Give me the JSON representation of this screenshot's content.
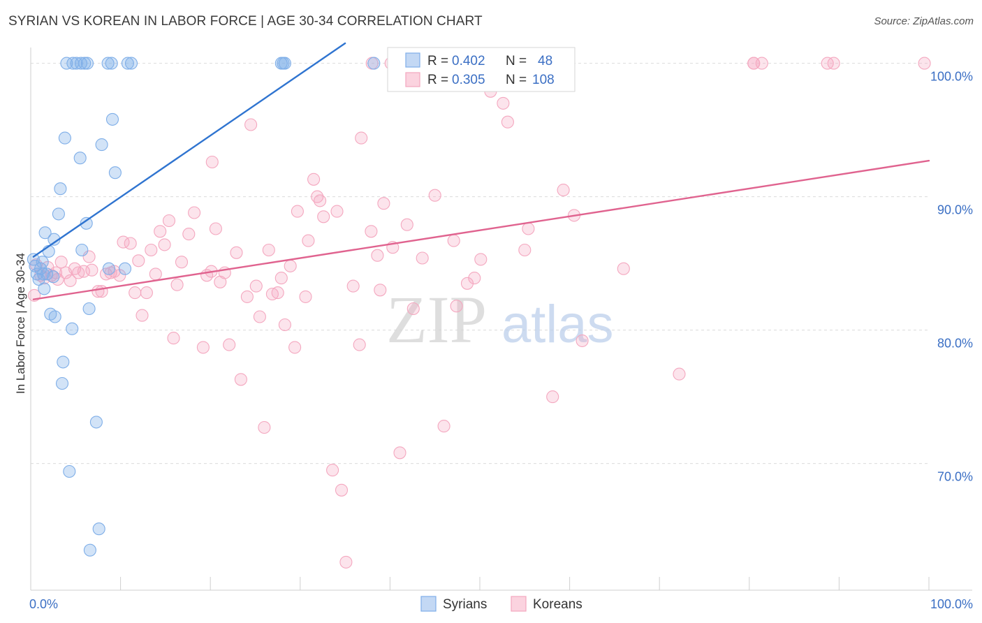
{
  "title": "SYRIAN VS KOREAN IN LABOR FORCE | AGE 30-34 CORRELATION CHART",
  "source": "Source: ZipAtlas.com",
  "watermark": {
    "zip": "ZIP",
    "atlas": "atlas"
  },
  "chart_data": {
    "type": "scatter",
    "ylabel": "In Labor Force | Age 30-34",
    "xlim": [
      0,
      100
    ],
    "ylim": [
      60.5,
      101.5
    ],
    "x_tick_labels": [
      {
        "x": 0,
        "label": "0.0%"
      },
      {
        "x": 100,
        "label": "100.0%"
      }
    ],
    "y_tick_labels": [
      {
        "y": 100,
        "label": "100.0%"
      },
      {
        "y": 90,
        "label": "90.0%"
      },
      {
        "y": 80,
        "label": "80.0%"
      },
      {
        "y": 70,
        "label": "70.0%"
      }
    ],
    "grid": true,
    "legend_placement": "top-center",
    "legend": [
      {
        "r_label": "R =",
        "r_value": "0.402",
        "n_label": "N =",
        "n_value": "48"
      },
      {
        "r_label": "R =",
        "r_value": "0.305",
        "n_label": "N =",
        "n_value": "108"
      }
    ],
    "series": [
      {
        "name": "Syrians",
        "color": "#7eaee8",
        "line_color": "#2f74d0",
        "trend": [
          [
            0.3,
            85.5
          ],
          [
            35,
            101.5
          ]
        ],
        "points": [
          [
            0.3,
            85.3
          ],
          [
            0.5,
            84.8
          ],
          [
            0.7,
            84.2
          ],
          [
            0.9,
            83.8
          ],
          [
            1.1,
            84.6
          ],
          [
            1.3,
            85.1
          ],
          [
            1.5,
            83.1
          ],
          [
            1.8,
            84.2
          ],
          [
            2.0,
            85.9
          ],
          [
            2.2,
            81.2
          ],
          [
            1.6,
            87.3
          ],
          [
            2.5,
            84.0
          ],
          [
            2.6,
            86.8
          ],
          [
            2.7,
            81.0
          ],
          [
            3.1,
            88.7
          ],
          [
            3.3,
            90.6
          ],
          [
            3.5,
            76.0
          ],
          [
            3.6,
            77.6
          ],
          [
            3.8,
            94.4
          ],
          [
            4.3,
            69.4
          ],
          [
            4.6,
            80.1
          ],
          [
            5.5,
            92.9
          ],
          [
            5.7,
            86.0
          ],
          [
            6.2,
            88.0
          ],
          [
            6.5,
            81.6
          ],
          [
            6.6,
            63.5
          ],
          [
            7.3,
            73.1
          ],
          [
            7.6,
            65.1
          ],
          [
            7.9,
            93.9
          ],
          [
            8.7,
            84.6
          ],
          [
            9.1,
            95.8
          ],
          [
            9.4,
            91.8
          ],
          [
            10.5,
            84.6
          ],
          [
            4.0,
            100.0
          ],
          [
            4.7,
            100.0
          ],
          [
            5.1,
            100.0
          ],
          [
            5.6,
            100.0
          ],
          [
            6.0,
            100.0
          ],
          [
            6.3,
            100.0
          ],
          [
            8.6,
            100.0
          ],
          [
            9.0,
            100.0
          ],
          [
            10.8,
            100.0
          ],
          [
            11.2,
            100.0
          ],
          [
            27.9,
            100.0
          ],
          [
            28.1,
            100.0
          ],
          [
            28.3,
            100.0
          ],
          [
            38.2,
            100.0
          ],
          [
            1.4,
            84.2
          ]
        ]
      },
      {
        "name": "Koreans",
        "color": "#f4a7bf",
        "line_color": "#e0638f",
        "trend": [
          [
            0.3,
            82.3
          ],
          [
            100,
            92.7
          ]
        ],
        "points": [
          [
            0.4,
            82.6
          ],
          [
            0.6,
            84.9
          ],
          [
            1.1,
            84.1
          ],
          [
            1.5,
            83.9
          ],
          [
            1.9,
            84.7
          ],
          [
            2.3,
            84.1
          ],
          [
            2.8,
            84.3
          ],
          [
            3.0,
            83.8
          ],
          [
            3.4,
            85.1
          ],
          [
            3.9,
            84.3
          ],
          [
            4.4,
            83.7
          ],
          [
            4.9,
            84.6
          ],
          [
            5.3,
            84.3
          ],
          [
            5.9,
            84.4
          ],
          [
            6.5,
            85.5
          ],
          [
            6.8,
            84.5
          ],
          [
            7.5,
            82.9
          ],
          [
            7.9,
            82.9
          ],
          [
            8.4,
            84.2
          ],
          [
            8.9,
            84.3
          ],
          [
            9.3,
            84.4
          ],
          [
            9.9,
            84.1
          ],
          [
            10.3,
            86.6
          ],
          [
            11.1,
            86.5
          ],
          [
            11.6,
            82.8
          ],
          [
            12.0,
            85.2
          ],
          [
            12.4,
            81.1
          ],
          [
            12.9,
            82.8
          ],
          [
            13.4,
            86.0
          ],
          [
            13.9,
            84.2
          ],
          [
            14.4,
            87.4
          ],
          [
            14.9,
            86.4
          ],
          [
            15.4,
            88.2
          ],
          [
            15.9,
            79.4
          ],
          [
            16.3,
            83.4
          ],
          [
            16.8,
            85.1
          ],
          [
            17.6,
            87.2
          ],
          [
            18.2,
            88.8
          ],
          [
            19.2,
            78.7
          ],
          [
            19.6,
            84.1
          ],
          [
            20.1,
            84.4
          ],
          [
            20.6,
            87.6
          ],
          [
            21.1,
            83.6
          ],
          [
            21.6,
            84.3
          ],
          [
            22.1,
            78.9
          ],
          [
            22.9,
            85.8
          ],
          [
            23.4,
            76.3
          ],
          [
            24.1,
            82.5
          ],
          [
            24.5,
            95.4
          ],
          [
            25.1,
            83.3
          ],
          [
            25.5,
            81.0
          ],
          [
            26.0,
            72.7
          ],
          [
            26.5,
            86.0
          ],
          [
            26.9,
            82.7
          ],
          [
            27.5,
            82.8
          ],
          [
            27.9,
            83.9
          ],
          [
            28.3,
            80.4
          ],
          [
            28.9,
            84.8
          ],
          [
            29.4,
            78.7
          ],
          [
            29.7,
            88.9
          ],
          [
            30.6,
            82.5
          ],
          [
            30.9,
            86.7
          ],
          [
            31.5,
            91.3
          ],
          [
            31.9,
            90.0
          ],
          [
            32.2,
            89.7
          ],
          [
            32.6,
            88.5
          ],
          [
            33.6,
            69.5
          ],
          [
            34.6,
            68.0
          ],
          [
            35.1,
            62.6
          ],
          [
            35.9,
            83.3
          ],
          [
            36.6,
            78.9
          ],
          [
            36.8,
            94.4
          ],
          [
            37.9,
            87.4
          ],
          [
            38.6,
            85.6
          ],
          [
            38.9,
            83.0
          ],
          [
            39.3,
            89.5
          ],
          [
            40.3,
            86.2
          ],
          [
            41.1,
            70.8
          ],
          [
            41.9,
            87.9
          ],
          [
            42.6,
            81.6
          ],
          [
            43.6,
            85.4
          ],
          [
            45.0,
            90.1
          ],
          [
            46.0,
            72.8
          ],
          [
            47.1,
            86.7
          ],
          [
            47.4,
            81.8
          ],
          [
            48.6,
            83.5
          ],
          [
            49.4,
            83.9
          ],
          [
            50.1,
            85.3
          ],
          [
            51.2,
            97.9
          ],
          [
            52.6,
            97.0
          ],
          [
            53.1,
            95.6
          ],
          [
            55.0,
            86.0
          ],
          [
            55.4,
            87.6
          ],
          [
            58.1,
            75.0
          ],
          [
            59.3,
            90.5
          ],
          [
            60.5,
            88.6
          ],
          [
            61.4,
            79.2
          ],
          [
            66.0,
            84.6
          ],
          [
            72.2,
            76.7
          ],
          [
            88.7,
            100.0
          ],
          [
            80.5,
            100.0
          ],
          [
            80.5,
            100.0
          ],
          [
            81.4,
            100.0
          ],
          [
            89.4,
            100.0
          ],
          [
            99.5,
            100.0
          ],
          [
            40.1,
            100.0
          ],
          [
            38.0,
            100.0
          ],
          [
            20.2,
            92.6
          ],
          [
            34.1,
            88.9
          ]
        ]
      }
    ]
  }
}
